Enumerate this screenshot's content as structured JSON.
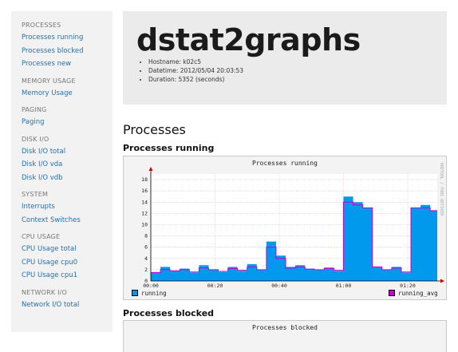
{
  "sidebar": {
    "sections": [
      {
        "header": "PROCESSES",
        "items": [
          "Processes running",
          "Processes blocked",
          "Processes new"
        ]
      },
      {
        "header": "MEMORY USAGE",
        "items": [
          "Memory Usage"
        ]
      },
      {
        "header": "PAGING",
        "items": [
          "Paging"
        ]
      },
      {
        "header": "DISK I/O",
        "items": [
          "Disk I/O total",
          "Disk I/O vda",
          "Disk I/O vdb"
        ]
      },
      {
        "header": "SYSTEM",
        "items": [
          "Interrupts",
          "Context Switches"
        ]
      },
      {
        "header": "CPU USAGE",
        "items": [
          "CPU Usage total",
          "CPU Usage cpu0",
          "CPU Usage cpu1"
        ]
      },
      {
        "header": "NETWORK I/O",
        "items": [
          "Network I/O total"
        ]
      }
    ]
  },
  "header": {
    "title": "dstat2graphs",
    "info": [
      "Hostname: k02c5",
      "Datetime: 2012/05/04 20:03:53",
      "Duration: 5352 (seconds)"
    ]
  },
  "main": {
    "section_title": "Processes",
    "charts": [
      {
        "heading": "Processes running",
        "chart_title": "Processes running",
        "side_label": "RRDTOOL / TOBI OETIKER"
      },
      {
        "heading": "Processes blocked",
        "chart_title": "Processes blocked"
      }
    ]
  },
  "chart_data": {
    "type": "area",
    "title": "Processes running",
    "xlabel": "",
    "ylabel": "",
    "x_ticks": [
      "00:00",
      "00:20",
      "00:40",
      "01:00",
      "01:20"
    ],
    "y_ticks": [
      0,
      2,
      4,
      6,
      8,
      10,
      12,
      14,
      16,
      18
    ],
    "ylim": [
      0,
      19
    ],
    "xlim_minutes": [
      0,
      89.2
    ],
    "grid": true,
    "legend": "bottom",
    "series": [
      {
        "name": "running",
        "color": "#0099ee",
        "x": [
          0,
          3,
          6,
          9,
          12,
          15,
          18,
          21,
          24,
          27,
          30,
          33,
          36,
          39,
          42,
          45,
          48,
          51,
          54,
          57,
          60,
          63,
          66,
          69,
          72,
          75,
          78,
          81,
          84,
          87
        ],
        "values": [
          1.5,
          2.5,
          1.8,
          2.2,
          1.5,
          2.8,
          2.0,
          1.6,
          2.5,
          1.8,
          3.0,
          2.0,
          7.0,
          4.5,
          2.5,
          2.8,
          2.2,
          2.0,
          2.4,
          1.8,
          15.0,
          14.0,
          13.0,
          2.5,
          2.0,
          2.5,
          1.5,
          13.0,
          13.5,
          12.5
        ]
      },
      {
        "name": "running_avg",
        "color": "#cc00cc",
        "x": [
          0,
          3,
          6,
          9,
          12,
          15,
          18,
          21,
          24,
          27,
          30,
          33,
          36,
          39,
          42,
          45,
          48,
          51,
          54,
          57,
          60,
          63,
          66,
          69,
          72,
          75,
          78,
          81,
          84,
          87
        ],
        "values": [
          1.5,
          2.0,
          1.8,
          2.0,
          1.6,
          2.3,
          2.0,
          1.7,
          2.2,
          1.9,
          2.5,
          2.0,
          6.0,
          4.0,
          2.3,
          2.5,
          2.1,
          2.0,
          2.2,
          1.9,
          14.0,
          13.5,
          13.0,
          2.5,
          2.0,
          2.3,
          1.6,
          13.0,
          13.0,
          12.5
        ]
      }
    ]
  }
}
